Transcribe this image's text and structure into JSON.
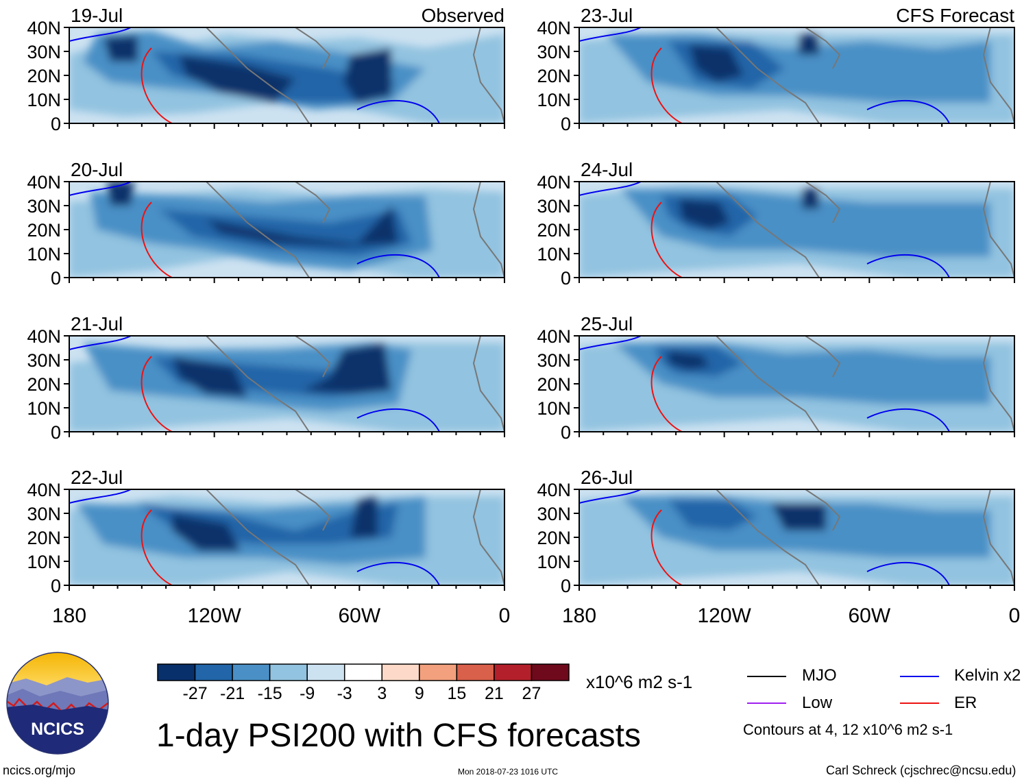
{
  "chart_data": {
    "type": "heatmap",
    "title": "1-day PSI200 with CFS forecasts",
    "variable": "PSI200",
    "units": "x10^6 m2 s-1",
    "columns": [
      "Observed",
      "CFS Forecast"
    ],
    "panels": [
      {
        "date": "19-Jul",
        "column": "Observed",
        "header_right": "Observed"
      },
      {
        "date": "20-Jul",
        "column": "Observed",
        "header_right": ""
      },
      {
        "date": "21-Jul",
        "column": "Observed",
        "header_right": ""
      },
      {
        "date": "22-Jul",
        "column": "Observed",
        "header_right": ""
      },
      {
        "date": "23-Jul",
        "column": "CFS Forecast",
        "header_right": "CFS Forecast"
      },
      {
        "date": "24-Jul",
        "column": "CFS Forecast",
        "header_right": ""
      },
      {
        "date": "25-Jul",
        "column": "CFS Forecast",
        "header_right": ""
      },
      {
        "date": "26-Jul",
        "column": "CFS Forecast",
        "header_right": ""
      }
    ],
    "lat_ticks": [
      "40N",
      "30N",
      "20N",
      "10N",
      "0"
    ],
    "lat_values": [
      40,
      30,
      20,
      10,
      0
    ],
    "lon_ticks": [
      "180",
      "120W",
      "60W",
      "0"
    ],
    "lon_values": [
      -180,
      -120,
      -60,
      0
    ],
    "colorbar": {
      "levels": [
        "-27",
        "-21",
        "-15",
        "-9",
        "-3",
        "3",
        "9",
        "15",
        "21",
        "27"
      ],
      "level_values": [
        -27,
        -21,
        -15,
        -9,
        -3,
        3,
        9,
        15,
        21,
        27
      ],
      "colors": [
        "#08306b",
        "#2265a8",
        "#4a90c6",
        "#92c3e0",
        "#cde2f1",
        "#ffffff",
        "#fcd9c8",
        "#f2a07d",
        "#d9604a",
        "#b3202b",
        "#6e0a1c"
      ],
      "units_label": "x10^6 m2 s-1"
    },
    "contour_legend": [
      {
        "label": "MJO",
        "color": "#000000"
      },
      {
        "label": "Kelvin x2",
        "color": "#0000ee"
      },
      {
        "label": "Low",
        "color": "#a020f0"
      },
      {
        "label": "ER",
        "color": "#ee1111"
      }
    ],
    "contour_note": "Contours at 4, 12 x10^6 m2 s-1"
  },
  "footer": {
    "logo_text": "NCICS",
    "url": "ncics.org/mjo",
    "timestamp": "Mon 2018-07-23 1016 UTC",
    "credit": "Carl Schreck (cjschrec@ncsu.edu)"
  }
}
